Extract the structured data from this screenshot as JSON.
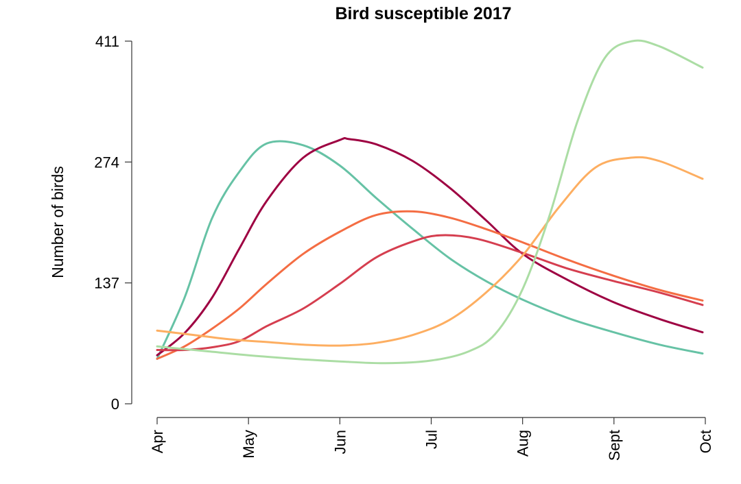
{
  "chart_data": {
    "type": "line",
    "title": "Bird susceptible 2017",
    "xlabel": "",
    "ylabel": "Number of birds",
    "x_ticks": [
      "Apr",
      "May",
      "Jun",
      "Jul",
      "Aug",
      "Sept",
      "Oct"
    ],
    "x_tick_positions": [
      0,
      1,
      2,
      3,
      4,
      5,
      6
    ],
    "xlim": [
      0,
      6
    ],
    "y_ticks": [
      0,
      137,
      274,
      411
    ],
    "ylim": [
      0,
      411
    ],
    "grid": false,
    "legend": "none",
    "series": [
      {
        "color": "#66c2a5",
        "x": [
          0,
          0.3,
          0.6,
          0.9,
          1.2,
          1.6,
          2.0,
          2.4,
          2.8,
          3.2,
          3.6,
          4.0,
          4.5,
          5.0,
          5.5,
          5.97
        ],
        "y": [
          51,
          120,
          210,
          263,
          295,
          293,
          270,
          233,
          198,
          165,
          139,
          118,
          97,
          81,
          67,
          57
        ]
      },
      {
        "color": "#9e0142",
        "x": [
          0,
          0.3,
          0.6,
          0.9,
          1.2,
          1.6,
          2.0,
          2.1,
          2.4,
          2.8,
          3.2,
          3.6,
          4.0,
          4.5,
          5.0,
          5.5,
          5.97
        ],
        "y": [
          55,
          80,
          120,
          176,
          230,
          279,
          299,
          300,
          294,
          275,
          245,
          208,
          170,
          140,
          115,
          96,
          81
        ]
      },
      {
        "color": "#f46d43",
        "x": [
          0,
          0.3,
          0.6,
          0.9,
          1.2,
          1.6,
          2.0,
          2.4,
          2.8,
          3.2,
          3.6,
          4.0,
          4.5,
          5.0,
          5.5,
          5.97
        ],
        "y": [
          51,
          65,
          85,
          108,
          136,
          170,
          195,
          214,
          218,
          211,
          198,
          183,
          163,
          145,
          129,
          117
        ]
      },
      {
        "color": "#d53e4f",
        "x": [
          0,
          0.3,
          0.6,
          0.9,
          1.2,
          1.6,
          2.0,
          2.4,
          2.8,
          3.1,
          3.5,
          4.0,
          4.5,
          5.0,
          5.5,
          5.97
        ],
        "y": [
          61,
          61,
          64,
          71,
          88,
          108,
          136,
          166,
          184,
          191,
          187,
          171,
          153,
          139,
          126,
          112
        ]
      },
      {
        "color": "#fdae61",
        "x": [
          0,
          0.4,
          0.8,
          1.2,
          1.6,
          2.0,
          2.4,
          2.8,
          3.2,
          3.6,
          4.0,
          4.4,
          4.8,
          5.2,
          5.5,
          5.97
        ],
        "y": [
          83,
          78,
          73,
          70,
          67,
          66,
          69,
          78,
          95,
          126,
          168,
          223,
          268,
          279,
          275,
          255
        ]
      },
      {
        "color": "#abdda4",
        "x": [
          0,
          0.5,
          1.0,
          1.5,
          2.0,
          2.5,
          3.0,
          3.4,
          3.7,
          4.0,
          4.3,
          4.6,
          4.9,
          5.2,
          5.5,
          5.97
        ],
        "y": [
          65,
          60,
          55,
          51,
          48,
          46,
          49,
          59,
          79,
          130,
          215,
          320,
          392,
          411,
          405,
          381
        ]
      }
    ]
  }
}
